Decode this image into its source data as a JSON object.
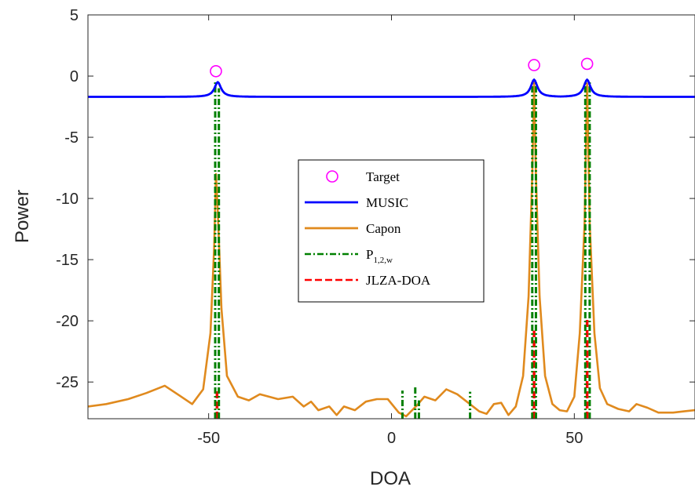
{
  "chart_data": {
    "type": "line",
    "xlabel": "DOA",
    "ylabel": "Power",
    "xlim": [
      -83,
      83
    ],
    "ylim": [
      -28,
      5
    ],
    "xticks": [
      -50,
      0,
      50
    ],
    "yticks": [
      5,
      0,
      -5,
      -10,
      -15,
      -20,
      -25
    ],
    "xtick_labels": [
      "-50",
      "0",
      "50"
    ],
    "ytick_labels": [
      "5",
      "0",
      "-5",
      "-10",
      "-15",
      "-20",
      "-25"
    ],
    "legend_position": "center",
    "series": [
      {
        "name": "Target",
        "kind": "marker",
        "color": "#ff00ff",
        "points": [
          [
            -48,
            0.4
          ],
          [
            39,
            0.9
          ],
          [
            53.5,
            1.0
          ]
        ]
      },
      {
        "name": "MUSIC",
        "kind": "line",
        "color": "#0000ff",
        "baseline": -1.7,
        "peaks": [
          [
            -47.5,
            -0.5
          ],
          [
            39,
            -0.3
          ],
          [
            53.5,
            -0.3
          ]
        ]
      },
      {
        "name": "Capon",
        "kind": "line",
        "color": "#e08a1e",
        "points": [
          [
            -83,
            -27
          ],
          [
            -78,
            -26.8
          ],
          [
            -72,
            -26.4
          ],
          [
            -67,
            -25.9
          ],
          [
            -62,
            -25.3
          ],
          [
            -58,
            -26.1
          ],
          [
            -54.5,
            -26.8
          ],
          [
            -51.5,
            -25.6
          ],
          [
            -49.5,
            -21
          ],
          [
            -48.5,
            -14
          ],
          [
            -48,
            -8
          ],
          [
            -47.5,
            -11
          ],
          [
            -46.5,
            -19
          ],
          [
            -45,
            -24.5
          ],
          [
            -42,
            -26.2
          ],
          [
            -39,
            -26.5
          ],
          [
            -36,
            -26.0
          ],
          [
            -31,
            -26.4
          ],
          [
            -27,
            -26.2
          ],
          [
            -24,
            -27.0
          ],
          [
            -22,
            -26.6
          ],
          [
            -20,
            -27.3
          ],
          [
            -17,
            -27.0
          ],
          [
            -15,
            -27.7
          ],
          [
            -13,
            -27.0
          ],
          [
            -10,
            -27.3
          ],
          [
            -7,
            -26.6
          ],
          [
            -4,
            -26.4
          ],
          [
            -1,
            -26.4
          ],
          [
            2,
            -27.5
          ],
          [
            4,
            -27.8
          ],
          [
            7,
            -26.9
          ],
          [
            9,
            -26.2
          ],
          [
            12,
            -26.5
          ],
          [
            15,
            -25.6
          ],
          [
            18,
            -26.0
          ],
          [
            21,
            -26.7
          ],
          [
            24,
            -27.4
          ],
          [
            26,
            -27.6
          ],
          [
            28,
            -26.8
          ],
          [
            30,
            -26.7
          ],
          [
            32,
            -27.7
          ],
          [
            34,
            -27.0
          ],
          [
            36,
            -24.5
          ],
          [
            37.5,
            -18
          ],
          [
            38.5,
            -8
          ],
          [
            39,
            -0.5
          ],
          [
            39.5,
            -8
          ],
          [
            40.5,
            -18
          ],
          [
            42,
            -24.5
          ],
          [
            44,
            -26.8
          ],
          [
            46,
            -27.3
          ],
          [
            48,
            -27.4
          ],
          [
            50,
            -26.2
          ],
          [
            51.5,
            -21
          ],
          [
            52.8,
            -12
          ],
          [
            53.5,
            -0.6
          ],
          [
            54.2,
            -12
          ],
          [
            55.5,
            -21
          ],
          [
            57,
            -25.5
          ],
          [
            59,
            -26.8
          ],
          [
            62,
            -27.2
          ],
          [
            65,
            -27.4
          ],
          [
            67,
            -26.8
          ],
          [
            70,
            -27.1
          ],
          [
            73,
            -27.5
          ],
          [
            77,
            -27.5
          ],
          [
            80,
            -27.4
          ],
          [
            83,
            -27.3
          ]
        ]
      },
      {
        "name": "P_{1,2,w}",
        "kind": "spikes",
        "color": "#008000",
        "bottom": -28,
        "spikes": [
          [
            -48.2,
            -0.5
          ],
          [
            -47.2,
            -1.0
          ],
          [
            3,
            -25.7
          ],
          [
            6.5,
            -25.3
          ],
          [
            7.5,
            -26.5
          ],
          [
            21.5,
            -25.8
          ],
          [
            38.5,
            -0.5
          ],
          [
            39.5,
            -0.5
          ],
          [
            53,
            -0.4
          ],
          [
            54.2,
            -0.5
          ]
        ]
      },
      {
        "name": "JLZA-DOA",
        "kind": "spikes",
        "color": "#ff0000",
        "bottom": -28,
        "spikes": [
          [
            -47.7,
            -25.7
          ],
          [
            39,
            -20.8
          ],
          [
            53.5,
            -19.9
          ]
        ]
      }
    ]
  },
  "legend": {
    "items": [
      {
        "label": "Target",
        "sub": "",
        "color": "#ff00ff"
      },
      {
        "label": "MUSIC",
        "sub": "",
        "color": "#0000ff"
      },
      {
        "label": "Capon",
        "sub": "",
        "color": "#e08a1e"
      },
      {
        "label": "P",
        "sub": "1,2,w",
        "color": "#008000"
      },
      {
        "label": "JLZA-DOA",
        "sub": "",
        "color": "#ff0000"
      }
    ]
  }
}
